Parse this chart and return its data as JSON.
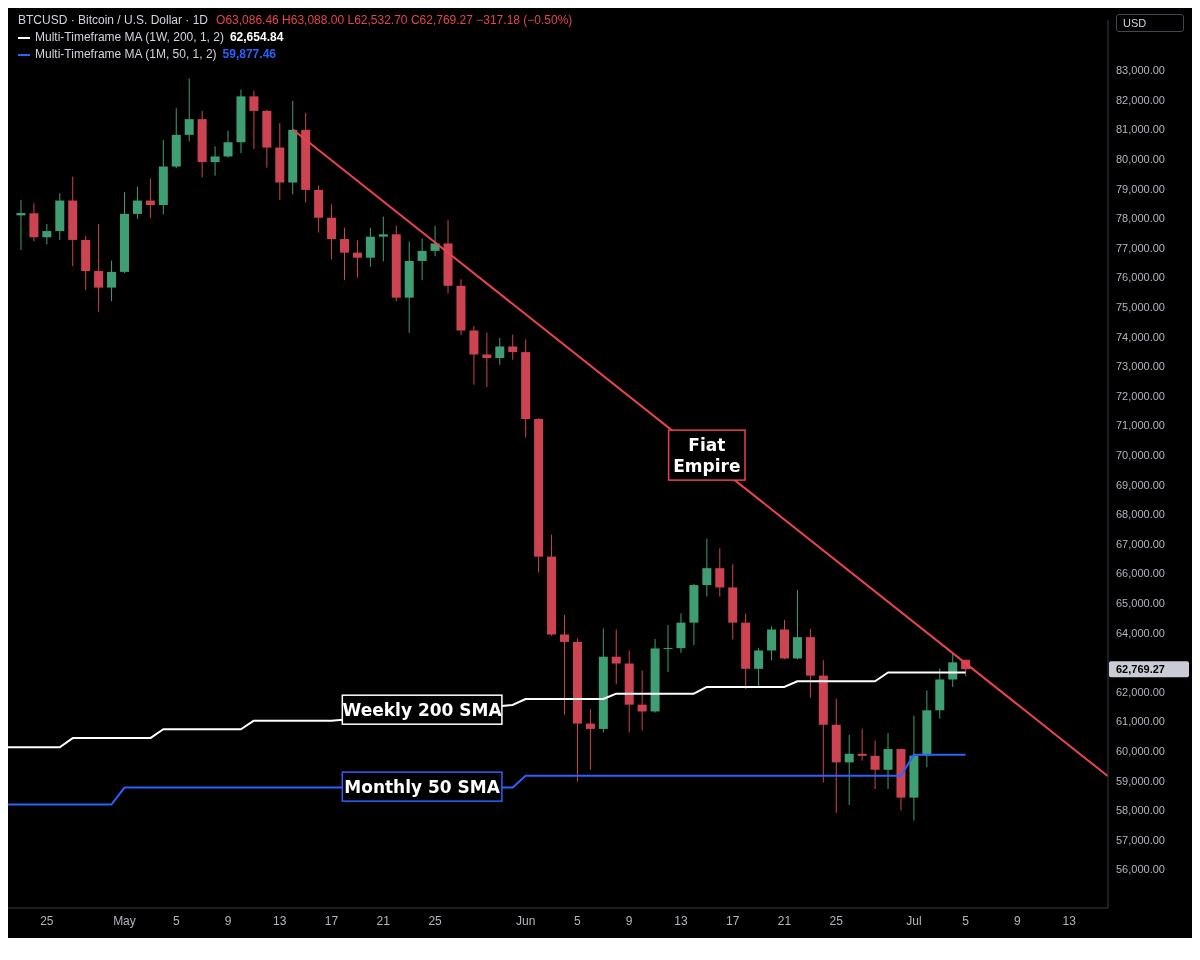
{
  "chart_data": {
    "type": "candlestick",
    "title": "BTCUSD · Bitcoin / U.S. Dollar · 1D",
    "ylabel": "USD",
    "legend": "top left",
    "annotations": [
      "O63,086.46 H63,088.00 L62,532.70 C62,769.27 −317.18 (−0.50%)",
      "62,654.84",
      "59,877.46",
      "62,769.27",
      {
        "text": "Weekly 200 SMA",
        "x": "--05-24",
        "y": 61400
      },
      {
        "text": "Monthly 50 SMA",
        "x": "--05-24",
        "y": 58800
      },
      {
        "text": "Fiat Empire",
        "x": "--06-15",
        "y": 70000
      }
    ],
    "x": [
      "--04-23",
      "--04-24",
      "--04-25",
      "--04-26",
      "--04-27",
      "--04-28",
      "--04-29",
      "--04-30",
      "--05-01",
      "--05-02",
      "--05-03",
      "--05-04",
      "--05-05",
      "--05-06",
      "--05-07",
      "--05-08",
      "--05-09",
      "--05-10",
      "--05-11",
      "--05-12",
      "--05-13",
      "--05-14",
      "--05-15",
      "--05-16",
      "--05-17",
      "--05-18",
      "--05-19",
      "--05-20",
      "--05-21",
      "--05-22",
      "--05-23",
      "--05-24",
      "--05-25",
      "--05-26",
      "--05-27",
      "--05-28",
      "--05-29",
      "--05-30",
      "--05-31",
      "--06-01",
      "--06-02",
      "--06-03",
      "--06-04",
      "--06-05",
      "--06-06",
      "--06-07",
      "--06-08",
      "--06-09",
      "--06-10",
      "--06-11",
      "--06-12",
      "--06-13",
      "--06-14",
      "--06-15",
      "--06-16",
      "--06-17",
      "--06-18",
      "--06-19",
      "--06-20",
      "--06-21",
      "--06-22",
      "--06-23",
      "--06-24",
      "--06-25",
      "--06-26",
      "--06-27",
      "--06-28",
      "--06-29",
      "--06-30",
      "--07-01",
      "--07-02",
      "--07-03",
      "--07-04",
      "--07-05"
    ],
    "ohlc": [
      [
        78100,
        78620,
        76930,
        78180
      ],
      [
        78170,
        78510,
        77230,
        77360
      ],
      [
        77360,
        77810,
        77120,
        77570
      ],
      [
        77570,
        78850,
        77270,
        78600
      ],
      [
        78600,
        79410,
        76380,
        77270
      ],
      [
        77270,
        77410,
        75570,
        76220
      ],
      [
        76220,
        77810,
        74840,
        75660
      ],
      [
        75660,
        76570,
        75200,
        76190
      ],
      [
        76190,
        78880,
        76150,
        78150
      ],
      [
        78150,
        79070,
        77980,
        78600
      ],
      [
        78600,
        79350,
        78000,
        78450
      ],
      [
        78450,
        80650,
        78130,
        79750
      ],
      [
        79750,
        81720,
        79700,
        80820
      ],
      [
        80820,
        82720,
        80600,
        81350
      ],
      [
        81350,
        81630,
        79380,
        79900
      ],
      [
        79900,
        80430,
        79440,
        80090
      ],
      [
        80090,
        80960,
        80050,
        80570
      ],
      [
        80570,
        82350,
        80200,
        82120
      ],
      [
        82120,
        82310,
        80340,
        81630
      ],
      [
        81630,
        81670,
        79710,
        80390
      ],
      [
        80390,
        81220,
        78620,
        79210
      ],
      [
        79210,
        81970,
        78810,
        80990
      ],
      [
        80990,
        81560,
        78530,
        78960
      ],
      [
        78960,
        79110,
        77520,
        78020
      ],
      [
        78020,
        78470,
        76610,
        77300
      ],
      [
        77300,
        77680,
        75910,
        76840
      ],
      [
        76840,
        77260,
        75990,
        76670
      ],
      [
        76670,
        77680,
        76360,
        77380
      ],
      [
        77380,
        78060,
        76550,
        77460
      ],
      [
        77460,
        77750,
        75200,
        75320
      ],
      [
        75320,
        77210,
        74130,
        76560
      ],
      [
        76560,
        77320,
        75910,
        76900
      ],
      [
        76900,
        77750,
        76720,
        77150
      ],
      [
        77150,
        77940,
        75460,
        75720
      ],
      [
        75720,
        75940,
        74050,
        74210
      ],
      [
        74210,
        74360,
        72380,
        73400
      ],
      [
        73400,
        74140,
        72300,
        73280
      ],
      [
        73280,
        73960,
        73050,
        73670
      ],
      [
        73670,
        74070,
        73220,
        73480
      ],
      [
        73480,
        73910,
        70600,
        71220
      ],
      [
        71220,
        71250,
        66030,
        66570
      ],
      [
        66570,
        67310,
        63900,
        63940
      ],
      [
        63940,
        64600,
        61230,
        63690
      ],
      [
        63690,
        63810,
        58970,
        60930
      ],
      [
        60930,
        61420,
        59370,
        60750
      ],
      [
        60750,
        64140,
        60630,
        63190
      ],
      [
        63190,
        64110,
        62270,
        62960
      ],
      [
        62960,
        63400,
        60630,
        61570
      ],
      [
        61570,
        62730,
        60700,
        61340
      ],
      [
        61340,
        63790,
        61300,
        63470
      ],
      [
        63470,
        64260,
        62670,
        63480
      ],
      [
        63480,
        64650,
        63320,
        64340
      ],
      [
        64340,
        65650,
        63580,
        65610
      ],
      [
        65610,
        67180,
        65220,
        66180
      ],
      [
        66180,
        66850,
        65220,
        65530
      ],
      [
        65530,
        66310,
        63770,
        64340
      ],
      [
        64340,
        64650,
        62100,
        62780
      ],
      [
        62780,
        63490,
        62190,
        63400
      ],
      [
        63400,
        64220,
        63060,
        64110
      ],
      [
        64110,
        64430,
        63100,
        63130
      ],
      [
        63130,
        65440,
        63100,
        63850
      ],
      [
        63850,
        64130,
        61800,
        62550
      ],
      [
        62550,
        63070,
        58940,
        60890
      ],
      [
        60890,
        61770,
        57920,
        59620
      ],
      [
        59620,
        60550,
        58180,
        59910
      ],
      [
        59910,
        60760,
        59680,
        59840
      ],
      [
        59840,
        60360,
        58720,
        59370
      ],
      [
        59370,
        60610,
        58720,
        60070
      ],
      [
        60070,
        60080,
        57990,
        58430
      ],
      [
        58430,
        61200,
        57650,
        59850
      ],
      [
        59850,
        62050,
        59460,
        61380
      ],
      [
        61380,
        62790,
        61100,
        62420
      ],
      [
        62420,
        63300,
        62170,
        63000
      ],
      [
        63086.46,
        63088.0,
        62532.7,
        62769.27
      ]
    ],
    "series": [
      {
        "name": "Multi-Timeframe MA (1W, 200, 1, 2)",
        "type": "line",
        "color": "#ffffff",
        "x": [
          "--04-22",
          "--04-26",
          "--04-27",
          "--05-03",
          "--05-04",
          "--05-10",
          "--05-11",
          "--05-17",
          "--05-31",
          "--06-01",
          "--06-07",
          "--06-08",
          "--06-14",
          "--06-15",
          "--06-21",
          "--06-22",
          "--06-28",
          "--06-29",
          "--07-05"
        ],
        "values": [
          60130,
          60130,
          60440,
          60440,
          60740,
          60740,
          61030,
          61030,
          61560,
          61760,
          61760,
          61940,
          61940,
          62170,
          62170,
          62360,
          62360,
          62654.84,
          62654.84
        ]
      },
      {
        "name": "Multi-Timeframe MA (1M, 50, 1, 2)",
        "type": "line",
        "color": "#2962ff",
        "x": [
          "--04-22",
          "--04-30",
          "--05-01",
          "--05-31",
          "--06-01",
          "--06-30",
          "--07-01",
          "--07-05"
        ],
        "values": [
          58200,
          58200,
          58770,
          58770,
          59170,
          59170,
          59877.46,
          59877.46
        ]
      },
      {
        "type": "line",
        "color": "#e8434f",
        "x": [
          "--05-14",
          "--07-16"
        ],
        "values": [
          81000,
          59150
        ]
      }
    ],
    "xlim": [
      "--04-22",
      "--07-16"
    ],
    "xticks": [
      {
        "value": "--04-25",
        "label": "25"
      },
      {
        "value": "--05-01",
        "label": "May"
      },
      {
        "value": "--05-05",
        "label": "5"
      },
      {
        "value": "--05-09",
        "label": "9"
      },
      {
        "value": "--05-13",
        "label": "13"
      },
      {
        "value": "--05-17",
        "label": "17"
      },
      {
        "value": "--05-21",
        "label": "21"
      },
      {
        "value": "--05-25",
        "label": "25"
      },
      {
        "value": "--06-01",
        "label": "Jun"
      },
      {
        "value": "--06-05",
        "label": "5"
      },
      {
        "value": "--06-09",
        "label": "9"
      },
      {
        "value": "--06-13",
        "label": "13"
      },
      {
        "value": "--06-17",
        "label": "17"
      },
      {
        "value": "--06-21",
        "label": "21"
      },
      {
        "value": "--06-25",
        "label": "25"
      },
      {
        "value": "--07-01",
        "label": "Jul"
      },
      {
        "value": "--07-05",
        "label": "5"
      },
      {
        "value": "--07-09",
        "label": "9"
      },
      {
        "value": "--07-13",
        "label": "13"
      }
    ],
    "ylim": [
      54700,
      84700
    ],
    "yticks": [
      {
        "value": 56000,
        "label": "56,000.00"
      },
      {
        "value": 57000,
        "label": "57,000.00"
      },
      {
        "value": 58000,
        "label": "58,000.00"
      },
      {
        "value": 59000,
        "label": "59,000.00"
      },
      {
        "value": 60000,
        "label": "60,000.00"
      },
      {
        "value": 61000,
        "label": "61,000.00"
      },
      {
        "value": 62000,
        "label": "62,000.00"
      },
      {
        "value": 64000,
        "label": "64,000.00"
      },
      {
        "value": 65000,
        "label": "65,000.00"
      },
      {
        "value": 66000,
        "label": "66,000.00"
      },
      {
        "value": 67000,
        "label": "67,000.00"
      },
      {
        "value": 68000,
        "label": "68,000.00"
      },
      {
        "value": 69000,
        "label": "69,000.00"
      },
      {
        "value": 70000,
        "label": "70,000.00"
      },
      {
        "value": 71000,
        "label": "71,000.00"
      },
      {
        "value": 72000,
        "label": "72,000.00"
      },
      {
        "value": 73000,
        "label": "73,000.00"
      },
      {
        "value": 74000,
        "label": "74,000.00"
      },
      {
        "value": 75000,
        "label": "75,000.00"
      },
      {
        "value": 76000,
        "label": "76,000.00"
      },
      {
        "value": 77000,
        "label": "77,000.00"
      },
      {
        "value": 78000,
        "label": "78,000.00"
      },
      {
        "value": 79000,
        "label": "79,000.00"
      },
      {
        "value": 80000,
        "label": "80,000.00"
      },
      {
        "value": 81000,
        "label": "81,000.00"
      },
      {
        "value": 82000,
        "label": "82,000.00"
      },
      {
        "value": 83000,
        "label": "83,000.00"
      }
    ]
  }
}
